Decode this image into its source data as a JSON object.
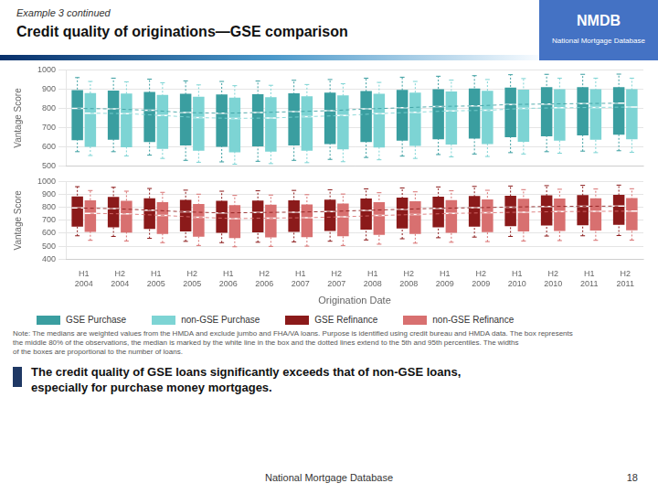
{
  "title": "Credit quality of originations—GSE comparison",
  "subtitle": "Example 3 continued",
  "annotations": {
    "logo": "NMDB",
    "logo_caption": "National Mortgage Database",
    "note": "Note: The medians are weighted values from the HMDA and exclude jumbo and FHA/VA loans.  Purpose is identified using credit bureau and HMDA data.  The box represents\nthe middle 80% of the observations, the median is marked by the white line in the box and the dotted lines extend to the 5th and 95th percentiles.  The widths\nof the boxes are proportional to the number of loans.",
    "summary": "The credit quality of GSE loans significantly exceeds that of non-GSE loans,\nespecially for purchase money mortgages.",
    "footer": "National Mortgage Database",
    "page": "18"
  },
  "chart_data": [
    {
      "type": "box",
      "ylabel": "Vantage Score",
      "categories": [
        "H1\n2004",
        "H2\n2004",
        "H1\n2005",
        "H2\n2005",
        "H1\n2006",
        "H2\n2006",
        "H1\n2007",
        "H2\n2007",
        "H1\n2008",
        "H2\n2008",
        "H1\n2009",
        "H2\n2009",
        "H1\n2010",
        "H2\n2010",
        "H1\n2011",
        "H2\n2011"
      ],
      "ylim": [
        500,
        1000
      ],
      "yticks": [
        500,
        600,
        700,
        800,
        900,
        1000
      ],
      "grid": true,
      "legend": "bottom",
      "tick_labels": "y",
      "series": [
        {
          "name": "GSE Purchase",
          "color": "#3A9EA0",
          "line_style": "dashed",
          "values": [
            800,
            797,
            790,
            778,
            775,
            778,
            783,
            788,
            797,
            803,
            810,
            813,
            820,
            823,
            825,
            827
          ],
          "q5": [
            575,
            575,
            557,
            530,
            522,
            525,
            530,
            535,
            545,
            552,
            560,
            563,
            570,
            575,
            578,
            580
          ],
          "q10": [
            635,
            637,
            625,
            608,
            600,
            603,
            608,
            615,
            625,
            632,
            640,
            643,
            650,
            655,
            660,
            663
          ],
          "q90": [
            895,
            892,
            885,
            876,
            872,
            874,
            878,
            882,
            890,
            896,
            900,
            903,
            908,
            910,
            910,
            910
          ],
          "q95": [
            960,
            957,
            952,
            943,
            940,
            942,
            946,
            950,
            957,
            962,
            967,
            970,
            975,
            977,
            977,
            978
          ]
        },
        {
          "name": "non-GSE Purchase",
          "color": "#7DD4D4",
          "line_style": "dashed",
          "values": [
            775,
            773,
            763,
            752,
            748,
            750,
            757,
            763,
            773,
            780,
            787,
            790,
            800,
            803,
            805,
            807
          ],
          "q5": [
            555,
            553,
            540,
            520,
            510,
            513,
            518,
            523,
            533,
            540,
            548,
            550,
            563,
            567,
            570,
            572
          ],
          "q10": [
            600,
            598,
            590,
            580,
            572,
            575,
            580,
            587,
            597,
            605,
            612,
            615,
            627,
            632,
            637,
            640
          ],
          "q90": [
            880,
            877,
            870,
            860,
            856,
            858,
            863,
            868,
            876,
            882,
            888,
            891,
            897,
            900,
            900,
            900
          ],
          "q95": [
            940,
            938,
            933,
            922,
            918,
            920,
            924,
            928,
            935,
            940,
            947,
            950,
            955,
            957,
            957,
            957
          ]
        }
      ]
    },
    {
      "type": "box",
      "ylabel": "Vantage Score",
      "xlabel": "Origination Date",
      "categories": [
        "H1\n2004",
        "H2\n2004",
        "H1\n2005",
        "H2\n2005",
        "H1\n2006",
        "H2\n2006",
        "H1\n2007",
        "H2\n2007",
        "H1\n2008",
        "H2\n2008",
        "H1\n2009",
        "H2\n2009",
        "H1\n2010",
        "H2\n2010",
        "H1\n2011",
        "H2\n2011"
      ],
      "ylim": [
        400,
        1000
      ],
      "yticks": [
        400,
        500,
        600,
        700,
        800,
        900,
        1000
      ],
      "grid": true,
      "legend": "bottom",
      "series": [
        {
          "name": "GSE Refinance",
          "color": "#8B1A1A",
          "line_style": "dashed",
          "values": [
            795,
            790,
            779,
            765,
            757,
            760,
            763,
            768,
            777,
            785,
            793,
            797,
            802,
            807,
            808,
            810
          ],
          "q5": [
            580,
            575,
            560,
            537,
            527,
            530,
            533,
            538,
            548,
            557,
            565,
            570,
            575,
            578,
            580,
            582
          ],
          "q10": [
            650,
            645,
            633,
            613,
            603,
            607,
            610,
            618,
            628,
            637,
            645,
            650,
            655,
            660,
            662,
            665
          ],
          "q90": [
            885,
            880,
            870,
            857,
            850,
            852,
            855,
            860,
            868,
            875,
            883,
            887,
            890,
            893,
            895,
            897
          ],
          "q95": [
            960,
            955,
            946,
            933,
            925,
            928,
            931,
            936,
            943,
            950,
            958,
            962,
            965,
            968,
            970,
            972
          ]
        },
        {
          "name": "non-GSE Refinance",
          "color": "#D87070",
          "line_style": "dashed",
          "values": [
            754,
            749,
            738,
            723,
            713,
            717,
            720,
            727,
            737,
            745,
            753,
            758,
            763,
            767,
            769,
            771
          ],
          "q5": [
            545,
            540,
            527,
            505,
            495,
            498,
            500,
            505,
            515,
            523,
            530,
            535,
            540,
            543,
            545,
            547
          ],
          "q10": [
            610,
            605,
            595,
            573,
            563,
            567,
            570,
            577,
            587,
            595,
            603,
            608,
            613,
            617,
            620,
            622
          ],
          "q90": [
            855,
            850,
            840,
            826,
            817,
            820,
            823,
            830,
            840,
            848,
            856,
            861,
            866,
            869,
            870,
            872
          ],
          "q95": [
            930,
            925,
            916,
            902,
            892,
            895,
            898,
            903,
            913,
            920,
            928,
            932,
            937,
            940,
            942,
            944
          ]
        }
      ]
    }
  ]
}
